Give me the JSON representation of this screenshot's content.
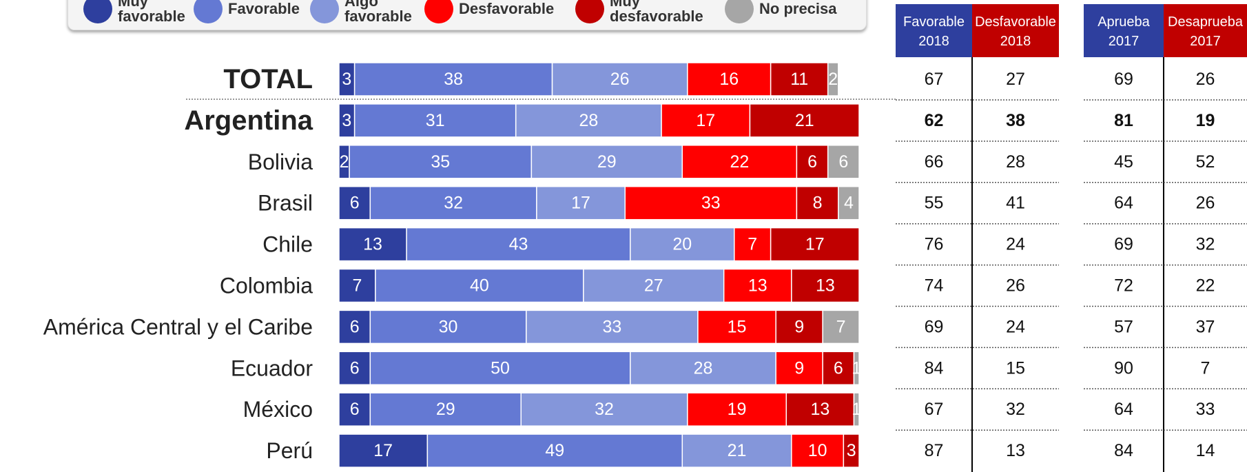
{
  "chart_data": {
    "type": "bar",
    "orientation": "horizontal",
    "stacked": true,
    "categories": [
      "TOTAL",
      "Argentina",
      "Bolivia",
      "Brasil",
      "Chile",
      "Colombia",
      "América Central y el Caribe",
      "Ecuador",
      "México",
      "Perú"
    ],
    "xlim": [
      0,
      100
    ],
    "series": [
      {
        "name": "Muy favorable",
        "color": "#2e3f9e",
        "values": [
          3,
          3,
          2,
          6,
          13,
          7,
          6,
          6,
          6,
          17
        ]
      },
      {
        "name": "Favorable",
        "color": "#6479d3",
        "values": [
          38,
          31,
          35,
          32,
          43,
          40,
          30,
          50,
          29,
          49
        ]
      },
      {
        "name": "Algo favorable",
        "color": "#8496da",
        "values": [
          26,
          28,
          29,
          17,
          20,
          27,
          33,
          28,
          32,
          21
        ]
      },
      {
        "name": "Desfavorable",
        "color": "#ff0000",
        "values": [
          16,
          17,
          22,
          33,
          7,
          13,
          15,
          9,
          19,
          10
        ]
      },
      {
        "name": "Muy desfavorable",
        "color": "#c00000",
        "values": [
          11,
          21,
          6,
          8,
          17,
          13,
          9,
          6,
          13,
          3
        ]
      },
      {
        "name": "No precisa",
        "color": "#a6a6a6",
        "values": [
          2,
          null,
          6,
          4,
          null,
          null,
          7,
          1,
          1,
          null
        ]
      }
    ]
  },
  "table": {
    "headers": [
      {
        "label": "Favorable",
        "year": "2018",
        "color": "#2e3f9e"
      },
      {
        "label": "Desfavorable",
        "year": "2018",
        "color": "#c00000"
      },
      {
        "label": "Aprueba",
        "year": "2017",
        "color": "#2e3f9e"
      },
      {
        "label": "Desaprueba",
        "year": "2017",
        "color": "#c00000"
      }
    ],
    "rows": [
      [
        67,
        27,
        69,
        26
      ],
      [
        62,
        38,
        81,
        19
      ],
      [
        66,
        28,
        45,
        52
      ],
      [
        55,
        41,
        64,
        26
      ],
      [
        76,
        24,
        69,
        32
      ],
      [
        74,
        26,
        72,
        22
      ],
      [
        69,
        24,
        57,
        37
      ],
      [
        84,
        15,
        90,
        7
      ],
      [
        67,
        32,
        64,
        33
      ],
      [
        87,
        13,
        84,
        14
      ]
    ]
  }
}
